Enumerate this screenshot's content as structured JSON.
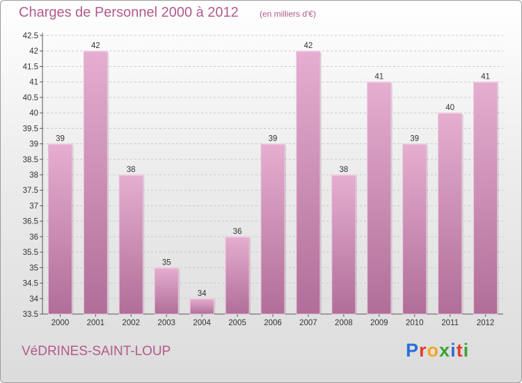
{
  "header": {
    "title": "Charges de Personnel 2000 à 2012",
    "subtitle": "(en milliers d'€)"
  },
  "footer": {
    "commune": "VéDRINES-SAINT-LOUP",
    "logo_letters": [
      "P",
      "r",
      "o",
      "x",
      "i",
      "t",
      "i"
    ],
    "logo_colors": [
      "#2b6fd6",
      "#e23d2d",
      "#f5a623",
      "#3aa335",
      "#2b6fd6",
      "#e23d2d",
      "#3aa335"
    ]
  },
  "colors": {
    "bar_fill_top": "#e6aed0",
    "bar_fill_bottom": "#b06e98",
    "text_accent": "#b25a8c"
  },
  "chart_data": {
    "type": "bar",
    "categories": [
      "2000",
      "2001",
      "2002",
      "2003",
      "2004",
      "2005",
      "2006",
      "2007",
      "2008",
      "2009",
      "2010",
      "2011",
      "2012"
    ],
    "values": [
      39,
      42,
      38,
      35,
      34,
      36,
      39,
      42,
      38,
      41,
      39,
      40,
      41
    ],
    "ylim": [
      33.5,
      42.5
    ],
    "yticks": [
      "33.5",
      "34",
      "34.5",
      "35",
      "35.5",
      "36",
      "36.5",
      "37",
      "37.5",
      "38",
      "38.5",
      "39",
      "39.5",
      "40",
      "40.5",
      "41",
      "41.5",
      "42",
      "42.5"
    ],
    "grid": true
  }
}
